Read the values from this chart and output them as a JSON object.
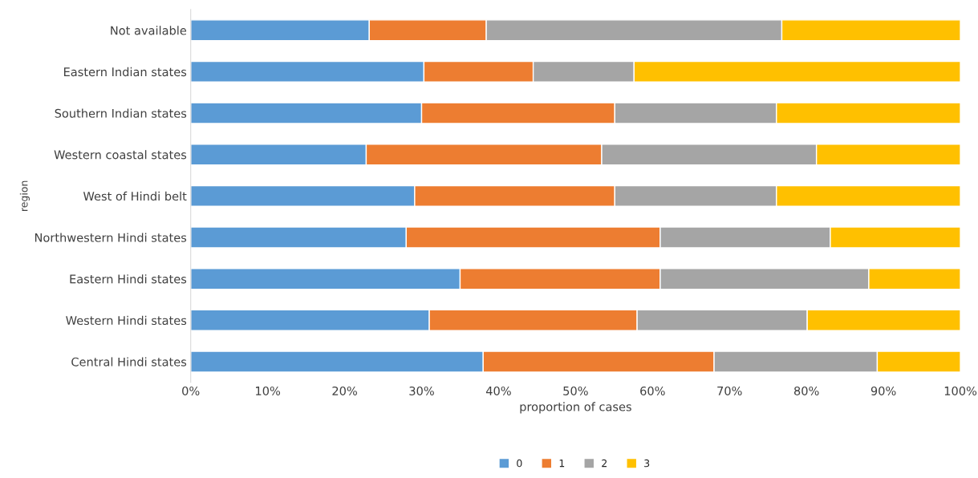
{
  "chart_data": {
    "type": "bar",
    "orientation": "horizontal",
    "stacked": true,
    "xlabel": "proportion of cases",
    "ylabel": "region",
    "categories": [
      "Not available",
      "Eastern Indian states",
      "Southern Indian states",
      "Western coastal states",
      "West of Hindi belt",
      "Northwestern Hindi states",
      "Eastern Hindi states",
      "Western Hindi states",
      "Central Hindi states"
    ],
    "series": [
      {
        "name": "0",
        "color": "#5b9bd5",
        "values": [
          23.2,
          30.3,
          30,
          22.8,
          29.1,
          28,
          35,
          31,
          38
        ]
      },
      {
        "name": "1",
        "color": "#ed7d31",
        "values": [
          15.2,
          14.2,
          25.1,
          30.6,
          26,
          33,
          26,
          27,
          30
        ]
      },
      {
        "name": "2",
        "color": "#a5a5a5",
        "values": [
          38.4,
          13.1,
          21,
          27.9,
          21,
          22.1,
          27.1,
          22.1,
          21.2
        ]
      },
      {
        "name": "3",
        "color": "#ffc000",
        "values": [
          23.2,
          42.4,
          23.9,
          18.7,
          23.9,
          16.9,
          11.9,
          19.9,
          10.8
        ]
      }
    ],
    "xlim": [
      0,
      100
    ],
    "xticks": [
      {
        "value": 0,
        "label": "0%"
      },
      {
        "value": 10,
        "label": "10%"
      },
      {
        "value": 20,
        "label": "20%"
      },
      {
        "value": 30,
        "label": "30%"
      },
      {
        "value": 40,
        "label": "40%"
      },
      {
        "value": 50,
        "label": "50%"
      },
      {
        "value": 60,
        "label": "60%"
      },
      {
        "value": 70,
        "label": "70%"
      },
      {
        "value": 80,
        "label": "80%"
      },
      {
        "value": 90,
        "label": "90%"
      },
      {
        "value": 100,
        "label": "100%"
      }
    ],
    "grid": false,
    "legend": "bottom"
  }
}
